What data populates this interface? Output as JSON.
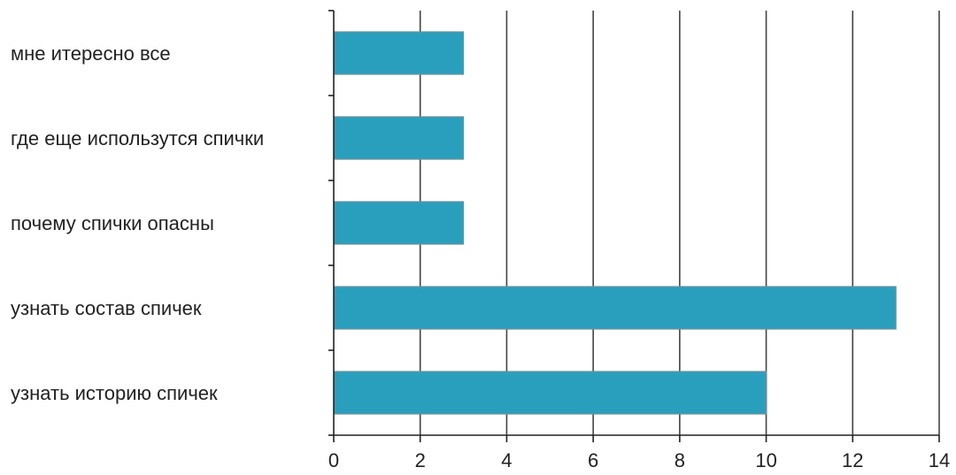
{
  "chart_data": {
    "type": "bar",
    "orientation": "horizontal",
    "categories": [
      "мне итересно все",
      "где еще использутся спички",
      "почему спички опасны",
      "узнать состав спичек",
      "узнать историю спичек"
    ],
    "values": [
      3,
      3,
      3,
      13,
      10
    ],
    "xlim": [
      0,
      14
    ],
    "x_ticks": [
      0,
      2,
      4,
      6,
      8,
      10,
      12,
      14
    ],
    "x_tick_labels": [
      "0",
      "2",
      "4",
      "6",
      "8",
      "10",
      "12",
      "14"
    ],
    "grid": "vertical",
    "legend": "none",
    "title": "",
    "xlabel": "",
    "ylabel": "",
    "colors": {
      "bar_fill": "#2a9fbd",
      "bar_stroke": "#6f8f99",
      "grid": "#444444",
      "axis": "#222222"
    }
  }
}
